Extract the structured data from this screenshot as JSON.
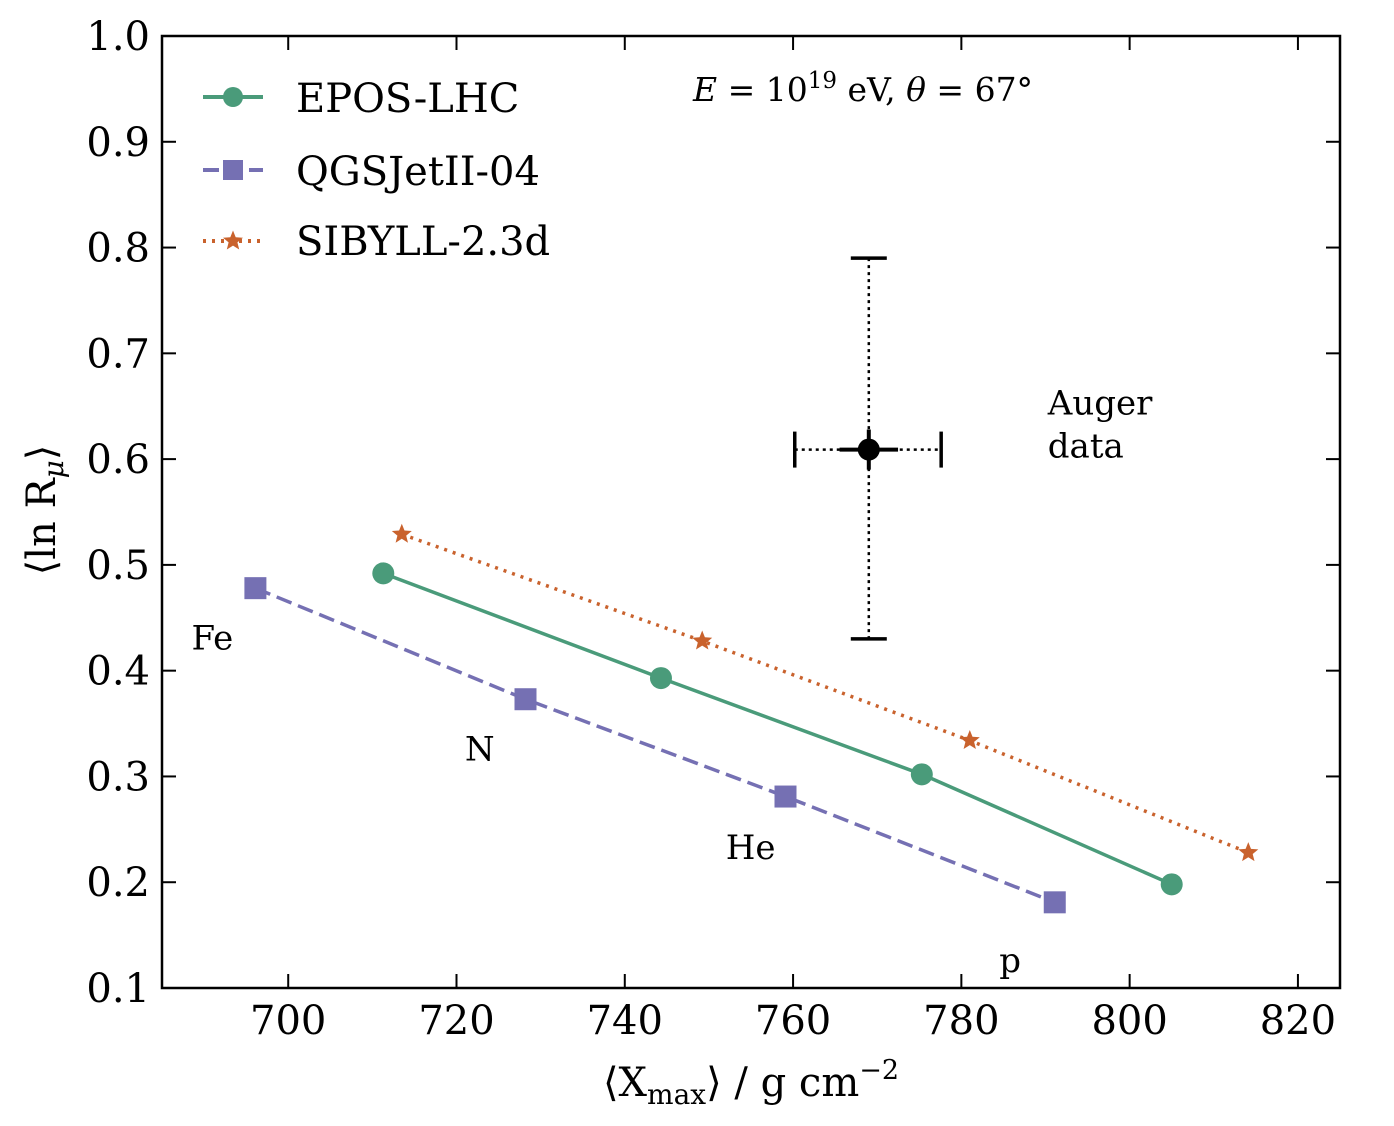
{
  "chart_data": {
    "type": "scatter",
    "xlabel": {
      "pre": "⟨X",
      "sub": "max",
      "post": "⟩ / g cm",
      "sup": "−2"
    },
    "ylabel": {
      "pre": "⟨ln R",
      "sub": "μ",
      "post": "⟩"
    },
    "xlim": [
      685,
      825
    ],
    "ylim": [
      0.1,
      1.0
    ],
    "xticks": [
      700,
      720,
      740,
      760,
      780,
      800,
      820
    ],
    "yticks": [
      "0.1",
      "0.2",
      "0.3",
      "0.4",
      "0.5",
      "0.6",
      "0.7",
      "0.8",
      "0.9",
      "1.0"
    ],
    "legend_position": "top-left",
    "series": [
      {
        "name": "EPOS-LHC",
        "color": "#4a9b7a",
        "line": "solid",
        "marker": "circle",
        "points": [
          {
            "x": 711.3,
            "y": 0.492
          },
          {
            "x": 744.3,
            "y": 0.393
          },
          {
            "x": 775.3,
            "y": 0.302
          },
          {
            "x": 805.0,
            "y": 0.198
          }
        ]
      },
      {
        "name": "QGSJetII-04",
        "color": "#7570b3",
        "line": "dashed",
        "marker": "square",
        "points": [
          {
            "x": 696.1,
            "y": 0.478
          },
          {
            "x": 728.2,
            "y": 0.373
          },
          {
            "x": 759.1,
            "y": 0.281
          },
          {
            "x": 791.1,
            "y": 0.181
          }
        ]
      },
      {
        "name": "SIBYLL-2.3d",
        "color": "#c9622d",
        "line": "dotted",
        "marker": "star",
        "points": [
          {
            "x": 713.5,
            "y": 0.529
          },
          {
            "x": 749.2,
            "y": 0.428
          },
          {
            "x": 781.0,
            "y": 0.334
          },
          {
            "x": 814.1,
            "y": 0.228
          }
        ]
      }
    ],
    "data_point": {
      "label_lines": [
        "Auger",
        "data"
      ],
      "x": 769.0,
      "y": 0.609,
      "xerr_stat": [
        766.0,
        772.0
      ],
      "xerr_sys": [
        760.2,
        777.6
      ],
      "yerr_stat": [
        0.59,
        0.628
      ],
      "yerr_sys": [
        0.43,
        0.79
      ]
    },
    "annotations": [
      {
        "text": "Fe",
        "x": 688.5,
        "y": 0.42
      },
      {
        "text": "N",
        "x": 721.0,
        "y": 0.315
      },
      {
        "text": "He",
        "x": 752.0,
        "y": 0.222
      },
      {
        "text": "p",
        "x": 784.5,
        "y": 0.115
      }
    ],
    "energy_label": {
      "E": "E",
      "eq": " = 10",
      "exp": "19",
      "unit": " eV, ",
      "theta": "θ",
      "angle": " = 67°"
    }
  }
}
